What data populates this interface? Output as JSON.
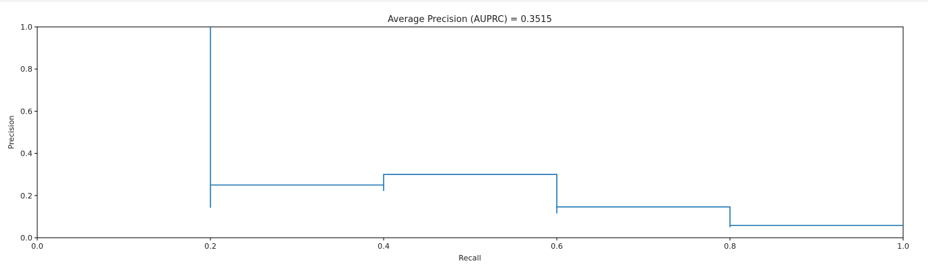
{
  "chart_data": {
    "type": "line",
    "title": "Average Precision (AUPRC) = 0.3515",
    "xlabel": "Recall",
    "ylabel": "Precision",
    "xlim": [
      0.0,
      1.0
    ],
    "ylim": [
      0.0,
      1.0
    ],
    "xticks": [
      0.0,
      0.2,
      0.4,
      0.6,
      0.8,
      1.0
    ],
    "xtick_labels": [
      "0.0",
      "0.2",
      "0.4",
      "0.6",
      "0.8",
      "1.0"
    ],
    "yticks": [
      0.0,
      0.2,
      0.4,
      0.6,
      0.8,
      1.0
    ],
    "ytick_labels": [
      "0.0",
      "0.2",
      "0.4",
      "0.6",
      "0.8",
      "1.0"
    ],
    "grid": false,
    "step": "post",
    "series": [
      {
        "color": "#1f77b4",
        "x": [
          0.2,
          0.2,
          0.2,
          0.4,
          0.4,
          0.4,
          0.6,
          0.6,
          0.6,
          0.8,
          0.8,
          0.8,
          1.0
        ],
        "y": [
          1.0,
          0.142,
          0.25,
          0.25,
          0.222,
          0.3,
          0.3,
          0.115,
          0.146,
          0.146,
          0.05,
          0.058,
          0.058
        ]
      }
    ]
  }
}
